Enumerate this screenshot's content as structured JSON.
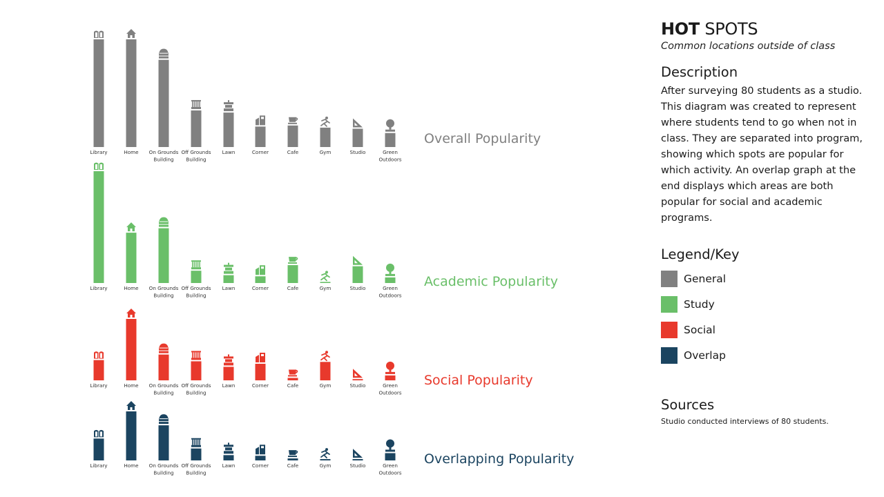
{
  "chart_data": [
    {
      "type": "bar",
      "title": "Overall Popularity",
      "series_key": "general",
      "categories": [
        "Library",
        "Home",
        "On Grounds Building",
        "Off Grounds Building",
        "Lawn",
        "Corner",
        "Cafe",
        "Gym",
        "Studio",
        "Green Outdoors"
      ],
      "values": [
        100,
        100,
        81,
        34,
        32,
        19,
        20,
        18,
        17,
        13
      ],
      "ylim": [
        0,
        100
      ]
    },
    {
      "type": "bar",
      "title": "Academic Popularity",
      "series_key": "study",
      "categories": [
        "Library",
        "Home",
        "On Grounds Building",
        "Off Grounds Building",
        "Lawn",
        "Corner",
        "Cafe",
        "Gym",
        "Studio",
        "Green Outdoors"
      ],
      "values": [
        100,
        45,
        49,
        11,
        7,
        6,
        16,
        1,
        15,
        5
      ],
      "ylim": [
        0,
        100
      ]
    },
    {
      "type": "bar",
      "title": "Social Popularity",
      "series_key": "social",
      "categories": [
        "Library",
        "Home",
        "On Grounds Building",
        "Off Grounds Building",
        "Lawn",
        "Corner",
        "Cafe",
        "Gym",
        "Studio",
        "Green Outdoors"
      ],
      "values": [
        33,
        100,
        42,
        31,
        22,
        27,
        4,
        30,
        2,
        8
      ],
      "ylim": [
        0,
        100
      ]
    },
    {
      "type": "bar",
      "title": "Overlapping Popularity",
      "series_key": "overlap",
      "categories": [
        "Library",
        "Home",
        "On Grounds Building",
        "Off Grounds Building",
        "Lawn",
        "Corner",
        "Cafe",
        "Gym",
        "Studio",
        "Green Outdoors"
      ],
      "values": [
        33,
        74,
        53,
        18,
        8,
        7,
        3,
        2,
        2,
        11
      ],
      "ylim": [
        0,
        100
      ]
    }
  ],
  "colors": {
    "general": "#808080",
    "study": "#6abf69",
    "social": "#e8392c",
    "overlap": "#1b4460"
  },
  "icons": [
    "book-icon",
    "house-icon",
    "dome-building-icon",
    "column-building-icon",
    "rotunda-icon",
    "storefront-icon",
    "coffee-cup-icon",
    "runner-icon",
    "triangle-ruler-icon",
    "tree-icon"
  ],
  "side": {
    "title_bold": "HOT",
    "title_rest": "SPOTS",
    "subtitle": "Common locations outside of class",
    "description_heading": "Description",
    "description": "After surveying 80 students as a studio. This diagram was created to represent where students tend to go when not in class. They are separated into program, showing which spots are popular for which activity. An overlap graph at the end displays which areas are both popular for social and academic programs.",
    "legend_heading": "Legend/Key",
    "legend": [
      {
        "label": "General",
        "color": "#808080"
      },
      {
        "label": "Study",
        "color": "#6abf69"
      },
      {
        "label": "Social",
        "color": "#e8392c"
      },
      {
        "label": "Overlap",
        "color": "#1b4460"
      }
    ],
    "sources_heading": "Sources",
    "sources": "Studio conducted interviews of 80 students."
  }
}
